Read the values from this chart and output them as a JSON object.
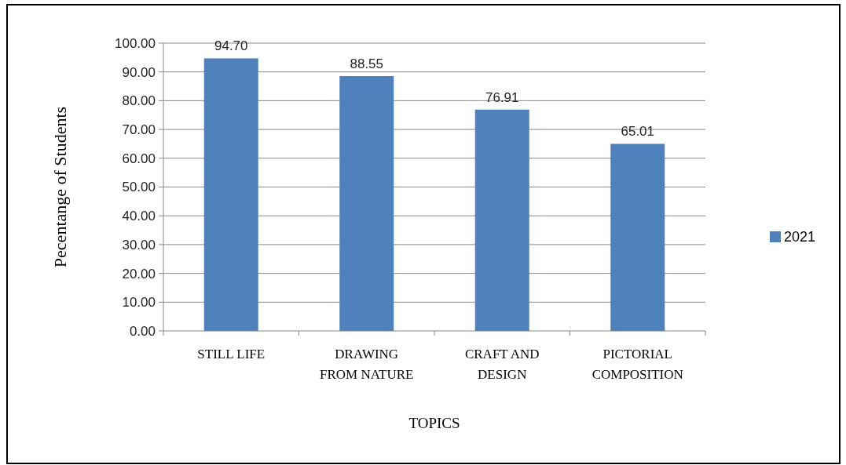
{
  "chart_data": {
    "type": "bar",
    "xlabel": "TOPICS",
    "ylabel": "Pecentange of Students",
    "categories": [
      "STILL LIFE",
      "DRAWING FROM NATURE",
      "CRAFT AND DESIGN",
      "PICTORIAL COMPOSITION"
    ],
    "series": [
      {
        "name": "2021",
        "color": "#4f81bd",
        "values": [
          94.7,
          88.55,
          76.91,
          65.01
        ],
        "value_labels": [
          "94.70",
          "88.55",
          "76.91",
          "65.01"
        ]
      }
    ],
    "ylim": [
      0,
      100
    ],
    "yticks": [
      {
        "value": 0,
        "label": "0.00"
      },
      {
        "value": 10,
        "label": "10.00"
      },
      {
        "value": 20,
        "label": "20.00"
      },
      {
        "value": 30,
        "label": "30.00"
      },
      {
        "value": 40,
        "label": "40.00"
      },
      {
        "value": 50,
        "label": "50.00"
      },
      {
        "value": 60,
        "label": "60.00"
      },
      {
        "value": 70,
        "label": "70.00"
      },
      {
        "value": 80,
        "label": "80.00"
      },
      {
        "value": 90,
        "label": "90.00"
      },
      {
        "value": 100,
        "label": "100.00"
      }
    ],
    "grid": "y",
    "legend": "right"
  }
}
